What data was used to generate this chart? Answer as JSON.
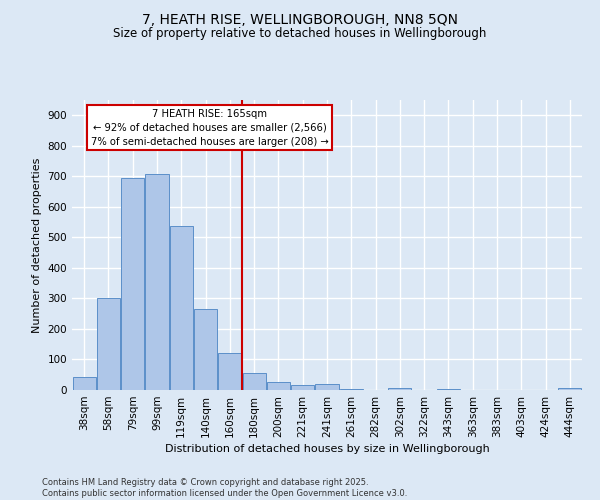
{
  "title1": "7, HEATH RISE, WELLINGBOROUGH, NN8 5QN",
  "title2": "Size of property relative to detached houses in Wellingborough",
  "xlabel": "Distribution of detached houses by size in Wellingborough",
  "ylabel": "Number of detached properties",
  "bar_labels": [
    "38sqm",
    "58sqm",
    "79sqm",
    "99sqm",
    "119sqm",
    "140sqm",
    "160sqm",
    "180sqm",
    "200sqm",
    "221sqm",
    "241sqm",
    "261sqm",
    "282sqm",
    "302sqm",
    "322sqm",
    "343sqm",
    "363sqm",
    "383sqm",
    "403sqm",
    "424sqm",
    "444sqm"
  ],
  "bar_values": [
    43,
    300,
    693,
    706,
    537,
    265,
    122,
    57,
    27,
    18,
    20,
    4,
    0,
    8,
    0,
    3,
    0,
    0,
    0,
    0,
    8
  ],
  "bar_color": "#aec6e8",
  "bar_edge_color": "#5b8fc9",
  "vline_x_idx": 6,
  "vline_color": "#cc0000",
  "annotation_title": "7 HEATH RISE: 165sqm",
  "annotation_line1": "← 92% of detached houses are smaller (2,566)",
  "annotation_line2": "7% of semi-detached houses are larger (208) →",
  "annotation_box_color": "#cc0000",
  "annotation_bg": "#ffffff",
  "ylim": [
    0,
    950
  ],
  "yticks": [
    0,
    100,
    200,
    300,
    400,
    500,
    600,
    700,
    800,
    900
  ],
  "footer1": "Contains HM Land Registry data © Crown copyright and database right 2025.",
  "footer2": "Contains public sector information licensed under the Open Government Licence v3.0.",
  "bg_color": "#dce8f5",
  "plot_bg_color": "#dce8f5",
  "grid_color": "#ffffff",
  "title1_fontsize": 10,
  "title2_fontsize": 8.5,
  "xlabel_fontsize": 8,
  "ylabel_fontsize": 8,
  "tick_fontsize": 7.5,
  "footer_fontsize": 6
}
